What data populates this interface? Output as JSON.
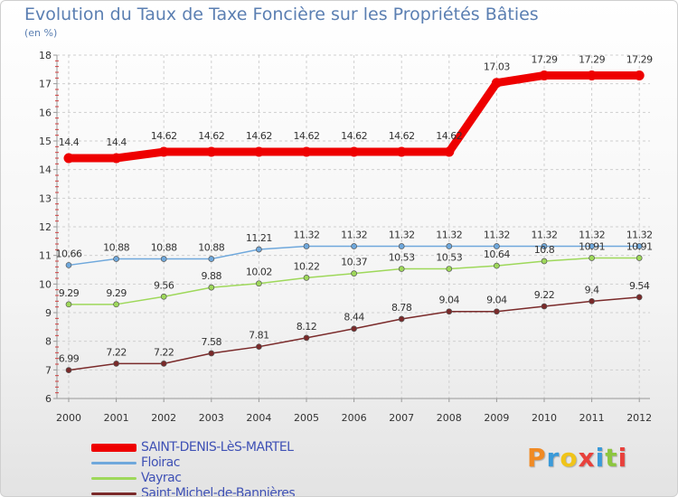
{
  "chart_data": {
    "type": "line",
    "title": "Evolution du Taux de Taxe Foncière sur les Propriétés Bâties",
    "subtitle": "(en %)",
    "xlabel": "",
    "ylabel": "",
    "categories": [
      "2000",
      "2001",
      "2002",
      "2003",
      "2004",
      "2005",
      "2006",
      "2007",
      "2008",
      "2009",
      "2010",
      "2011",
      "2012"
    ],
    "ylim": [
      6,
      18
    ],
    "yticks": [
      "6",
      "7",
      "8",
      "9",
      "10",
      "11",
      "12",
      "13",
      "14",
      "15",
      "16",
      "17",
      "18"
    ],
    "legend_position": "bottom-left",
    "series": [
      {
        "name": "SAINT-DENIS-LèS-MARTEL",
        "color": "#ee0000",
        "values": [
          14.4,
          14.4,
          14.62,
          14.62,
          14.62,
          14.62,
          14.62,
          14.62,
          14.62,
          17.03,
          17.29,
          17.29,
          17.29
        ],
        "labels": [
          "14.4",
          "14.4",
          "14.62",
          "14.62",
          "14.62",
          "14.62",
          "14.62",
          "14.62",
          "14.62",
          "17.03",
          "17.29",
          "17.29",
          "17.29"
        ]
      },
      {
        "name": "Floirac",
        "color": "#6fa8dc",
        "values": [
          10.66,
          10.88,
          10.88,
          10.88,
          11.21,
          11.32,
          11.32,
          11.32,
          11.32,
          11.32,
          11.32,
          11.32,
          11.32
        ],
        "labels": [
          "10.66",
          "10.88",
          "10.88",
          "10.88",
          "11.21",
          "11.32",
          "11.32",
          "11.32",
          "11.32",
          "11.32",
          "11.32",
          "11.32",
          "11.32"
        ]
      },
      {
        "name": "Vayrac",
        "color": "#9ed85a",
        "values": [
          9.29,
          9.29,
          9.56,
          9.88,
          10.02,
          10.22,
          10.37,
          10.53,
          10.53,
          10.64,
          10.8,
          10.91,
          10.91
        ],
        "labels": [
          "9.29",
          "9.29",
          "9.56",
          "9.88",
          "10.02",
          "10.22",
          "10.37",
          "10.53",
          "10.53",
          "10.64",
          "10.8",
          "10.91",
          "10.91"
        ]
      },
      {
        "name": "Saint-Michel-de-Bannières",
        "color": "#7a2a2a",
        "values": [
          6.99,
          7.22,
          7.22,
          7.58,
          7.81,
          8.12,
          8.44,
          8.78,
          9.04,
          9.04,
          9.22,
          9.4,
          9.54
        ],
        "labels": [
          "6.99",
          "7.22",
          "7.22",
          "7.58",
          "7.81",
          "8.12",
          "8.44",
          "8.78",
          "9.04",
          "9.04",
          "9.22",
          "9.4",
          "9.54"
        ]
      }
    ]
  },
  "brand": {
    "letters": [
      "P",
      "r",
      "o",
      "x",
      "i",
      "t",
      "i"
    ],
    "colors": [
      "#f08a24",
      "#3a9ad9",
      "#f0c419",
      "#e8413c",
      "#3a9ad9",
      "#8cc63f",
      "#e8413c"
    ]
  }
}
